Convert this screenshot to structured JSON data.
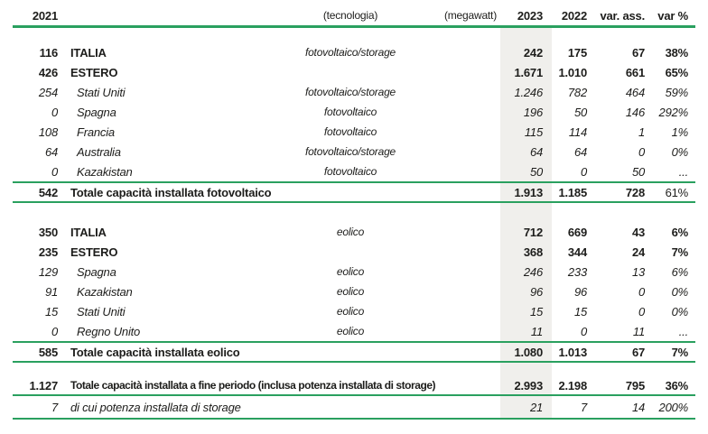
{
  "accent_color": "#2aa05f",
  "highlight_color": "#f0efec",
  "header": {
    "y2021": "2021",
    "tech": "(tecnologia)",
    "unit": "(megawatt)",
    "y2023": "2023",
    "y2022": "2022",
    "var_abs": "var. ass.",
    "var_pct": "var %"
  },
  "sections": [
    {
      "rows": [
        {
          "emphasis": "bold",
          "v2021": "116",
          "name": "ITALIA",
          "tech": "fotovoltaico/storage",
          "v2023": "242",
          "v2022": "175",
          "var_abs": "67",
          "var_pct": "38%"
        },
        {
          "emphasis": "bold",
          "v2021": "426",
          "name": "ESTERO",
          "tech": "",
          "v2023": "1.671",
          "v2022": "1.010",
          "var_abs": "661",
          "var_pct": "65%"
        },
        {
          "emphasis": "italic",
          "v2021": "254",
          "name": "Stati Uniti",
          "tech": "fotovoltaico/storage",
          "v2023": "1.246",
          "v2022": "782",
          "var_abs": "464",
          "var_pct": "59%"
        },
        {
          "emphasis": "italic",
          "v2021": "0",
          "name": "Spagna",
          "tech": "fotovoltaico",
          "v2023": "196",
          "v2022": "50",
          "var_abs": "146",
          "var_pct": "292%"
        },
        {
          "emphasis": "italic",
          "v2021": "108",
          "name": "Francia",
          "tech": "fotovoltaico",
          "v2023": "115",
          "v2022": "114",
          "var_abs": "1",
          "var_pct": "1%"
        },
        {
          "emphasis": "italic",
          "v2021": "64",
          "name": "Australia",
          "tech": "fotovoltaico/storage",
          "v2023": "64",
          "v2022": "64",
          "var_abs": "0",
          "var_pct": "0%"
        },
        {
          "emphasis": "italic",
          "v2021": "0",
          "name": "Kazakistan",
          "tech": "fotovoltaico",
          "v2023": "50",
          "v2022": "0",
          "var_abs": "50",
          "var_pct": "..."
        }
      ],
      "total": {
        "v2021": "542",
        "name": "Totale capacità installata fotovoltaico",
        "v2023": "1.913",
        "v2022": "1.185",
        "var_abs": "728",
        "var_pct": "61%",
        "var_pct_bold": false
      }
    },
    {
      "rows": [
        {
          "emphasis": "bold",
          "v2021": "350",
          "name": "ITALIA",
          "tech": "eolico",
          "v2023": "712",
          "v2022": "669",
          "var_abs": "43",
          "var_pct": "6%"
        },
        {
          "emphasis": "bold",
          "v2021": "235",
          "name": "ESTERO",
          "tech": "",
          "v2023": "368",
          "v2022": "344",
          "var_abs": "24",
          "var_pct": "7%"
        },
        {
          "emphasis": "italic",
          "v2021": "129",
          "name": "Spagna",
          "tech": "eolico",
          "v2023": "246",
          "v2022": "233",
          "var_abs": "13",
          "var_pct": "6%"
        },
        {
          "emphasis": "italic",
          "v2021": "91",
          "name": "Kazakistan",
          "tech": "eolico",
          "v2023": "96",
          "v2022": "96",
          "var_abs": "0",
          "var_pct": "0%"
        },
        {
          "emphasis": "italic",
          "v2021": "15",
          "name": "Stati Uniti",
          "tech": "eolico",
          "v2023": "15",
          "v2022": "15",
          "var_abs": "0",
          "var_pct": "0%"
        },
        {
          "emphasis": "italic",
          "v2021": "0",
          "name": "Regno Unito",
          "tech": "eolico",
          "v2023": "11",
          "v2022": "0",
          "var_abs": "11",
          "var_pct": "..."
        }
      ],
      "total": {
        "v2021": "585",
        "name": "Totale capacità installata eolico",
        "v2023": "1.080",
        "v2022": "1.013",
        "var_abs": "67",
        "var_pct": "7%",
        "var_pct_bold": true
      }
    }
  ],
  "grand_total": {
    "v2021": "1.127",
    "name": "Totale capacità installata a fine periodo (inclusa potenza installata di storage)",
    "v2023": "2.993",
    "v2022": "2.198",
    "var_abs": "795",
    "var_pct": "36%",
    "var_pct_bold": true
  },
  "storage_row": {
    "v2021": "7",
    "name": "di cui potenza installata di storage",
    "v2023": "21",
    "v2022": "7",
    "var_abs": "14",
    "var_pct": "200%"
  }
}
